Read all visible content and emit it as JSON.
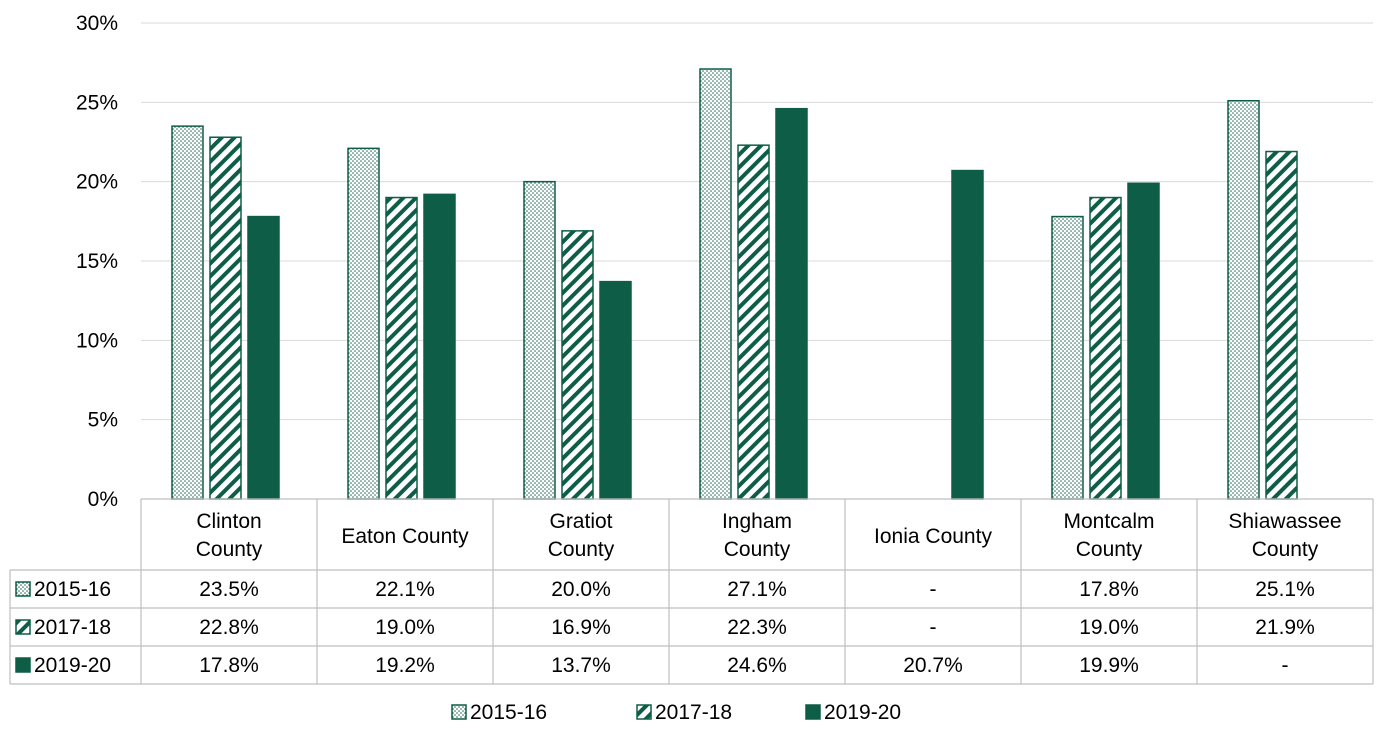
{
  "chart_data": {
    "type": "bar",
    "title": "",
    "xlabel": "",
    "ylabel": "",
    "ylim": [
      0,
      30
    ],
    "yticks": [
      "0%",
      "5%",
      "10%",
      "15%",
      "20%",
      "25%",
      "30%"
    ],
    "grid": true,
    "legend_position": "bottom",
    "categories": [
      [
        "Clinton",
        "County"
      ],
      [
        "Eaton County"
      ],
      [
        "Gratiot",
        "County"
      ],
      [
        "Ingham",
        "County"
      ],
      [
        "Ionia County"
      ],
      [
        "Montcalm",
        "County"
      ],
      [
        "Shiawassee",
        "County"
      ]
    ],
    "series": [
      {
        "name": "2015-16",
        "pattern": "dots",
        "values": [
          23.5,
          22.1,
          20.0,
          27.1,
          null,
          17.8,
          25.1
        ],
        "labels": [
          "23.5%",
          "22.1%",
          "20.0%",
          "27.1%",
          "-",
          "17.8%",
          "25.1%"
        ]
      },
      {
        "name": "2017-18",
        "pattern": "hatch",
        "values": [
          22.8,
          19.0,
          16.9,
          22.3,
          null,
          19.0,
          21.9
        ],
        "labels": [
          "22.8%",
          "19.0%",
          "16.9%",
          "22.3%",
          "-",
          "19.0%",
          "21.9%"
        ]
      },
      {
        "name": "2019-20",
        "pattern": "solid",
        "values": [
          17.8,
          19.2,
          13.7,
          24.6,
          20.7,
          19.9,
          null
        ],
        "labels": [
          "17.8%",
          "19.2%",
          "13.7%",
          "24.6%",
          "20.7%",
          "19.9%",
          "-"
        ]
      }
    ],
    "colors": {
      "primary": "#0e5e47",
      "grid": "#d9d9d9",
      "table_border": "#bfbfbf"
    }
  }
}
